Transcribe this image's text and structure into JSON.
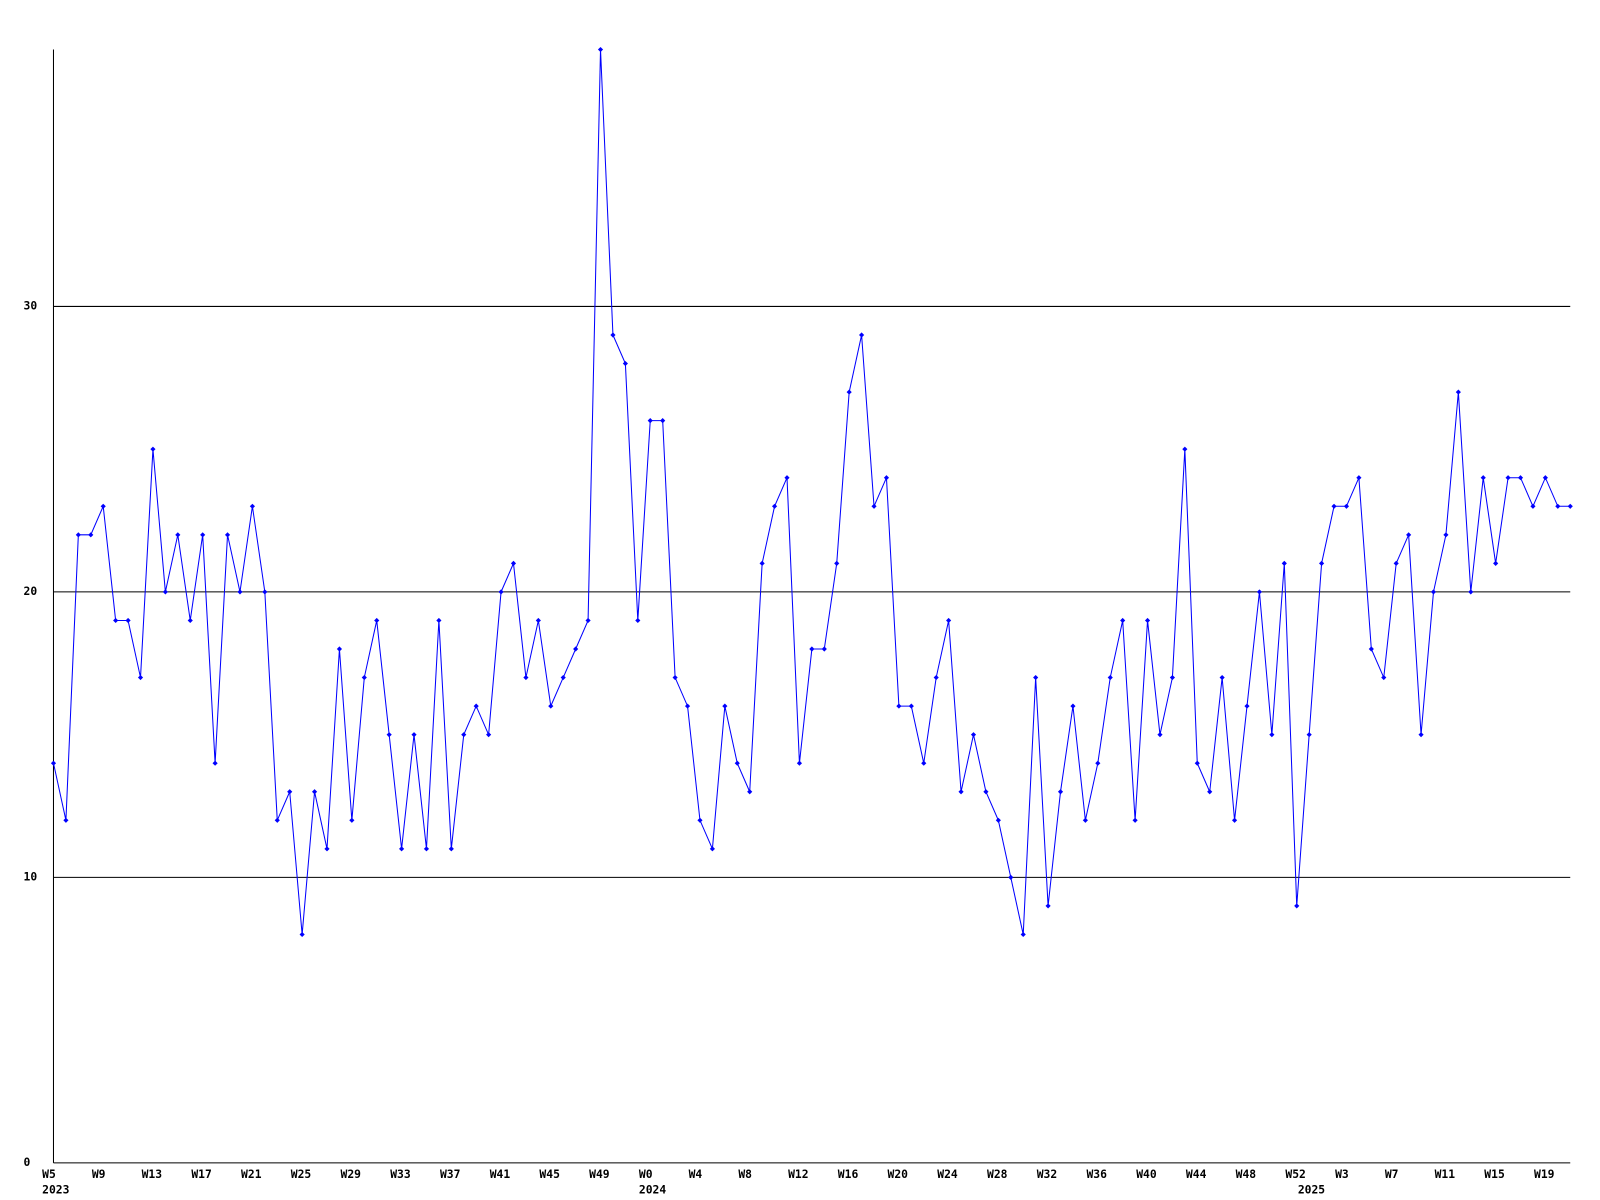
{
  "chart_data": {
    "type": "line",
    "categories": [
      "W5",
      null,
      null,
      null,
      "W9",
      null,
      null,
      null,
      "W13",
      null,
      null,
      null,
      "W17",
      null,
      null,
      null,
      "W21",
      null,
      null,
      null,
      "W25",
      null,
      null,
      null,
      "W29",
      null,
      null,
      null,
      "W33",
      null,
      null,
      null,
      "W37",
      null,
      null,
      null,
      "W41",
      null,
      null,
      null,
      "W45",
      null,
      null,
      null,
      "W49",
      null,
      null,
      null,
      "W0",
      null,
      null,
      null,
      "W4",
      null,
      null,
      null,
      "W8",
      null,
      null,
      null,
      "W12",
      null,
      null,
      null,
      "W16",
      null,
      null,
      null,
      "W20",
      null,
      null,
      null,
      "W24",
      null,
      null,
      null,
      "W28",
      null,
      null,
      null,
      "W32",
      null,
      null,
      null,
      "W36",
      null,
      null,
      null,
      "W40",
      null,
      null,
      null,
      "W44",
      null,
      null,
      null,
      "W48",
      null,
      null,
      null,
      "W52",
      null,
      null,
      null,
      "W3",
      null,
      null,
      null,
      "W7",
      null,
      null,
      null,
      "W11",
      null,
      null,
      null,
      "W15",
      null,
      null,
      null,
      "W19",
      null,
      null
    ],
    "year_labels": [
      "2023",
      null,
      null,
      null,
      null,
      null,
      null,
      null,
      null,
      null,
      null,
      null,
      null,
      null,
      null,
      null,
      null,
      null,
      null,
      null,
      null,
      null,
      null,
      null,
      null,
      null,
      null,
      null,
      null,
      null,
      null,
      null,
      null,
      null,
      null,
      null,
      null,
      null,
      null,
      null,
      null,
      null,
      null,
      null,
      null,
      null,
      null,
      null,
      "2024",
      null,
      null,
      null,
      null,
      null,
      null,
      null,
      null,
      null,
      null,
      null,
      null,
      null,
      null,
      null,
      null,
      null,
      null,
      null,
      null,
      null,
      null,
      null,
      null,
      null,
      null,
      null,
      null,
      null,
      null,
      null,
      null,
      null,
      null,
      null,
      null,
      null,
      null,
      null,
      null,
      null,
      null,
      null,
      null,
      null,
      null,
      null,
      null,
      null,
      null,
      null,
      null,
      "2025",
      null,
      null,
      null,
      null,
      null,
      null,
      null,
      null,
      null,
      null,
      null,
      null,
      null,
      null,
      null,
      null,
      null,
      null,
      null,
      null,
      null
    ],
    "series": [
      {
        "color": "#0000ff",
        "values": [
          14,
          12,
          22,
          22,
          23,
          19,
          19,
          17,
          25,
          20,
          22,
          19,
          22,
          14,
          22,
          20,
          23,
          20,
          12,
          13,
          8,
          13,
          11,
          18,
          12,
          17,
          19,
          15,
          11,
          15,
          11,
          19,
          11,
          15,
          16,
          15,
          20,
          21,
          17,
          19,
          16,
          17,
          18,
          19,
          39,
          29,
          28,
          19,
          26,
          26,
          17,
          16,
          12,
          11,
          16,
          14,
          13,
          21,
          23,
          24,
          14,
          18,
          18,
          21,
          27,
          29,
          23,
          24,
          16,
          16,
          14,
          17,
          19,
          13,
          15,
          13,
          12,
          10,
          8,
          17,
          9,
          13,
          16,
          12,
          14,
          17,
          19,
          12,
          19,
          15,
          17,
          25,
          14,
          13,
          17,
          12,
          16,
          20,
          15,
          21,
          9,
          15,
          21,
          23,
          23,
          24,
          18,
          17,
          21,
          22,
          15,
          20,
          22,
          27,
          20,
          24,
          21,
          24,
          24,
          23,
          24,
          23,
          23
        ]
      }
    ],
    "ylim": [
      0,
      39
    ],
    "yticks": [
      0,
      10,
      20,
      30
    ],
    "grid": true
  }
}
